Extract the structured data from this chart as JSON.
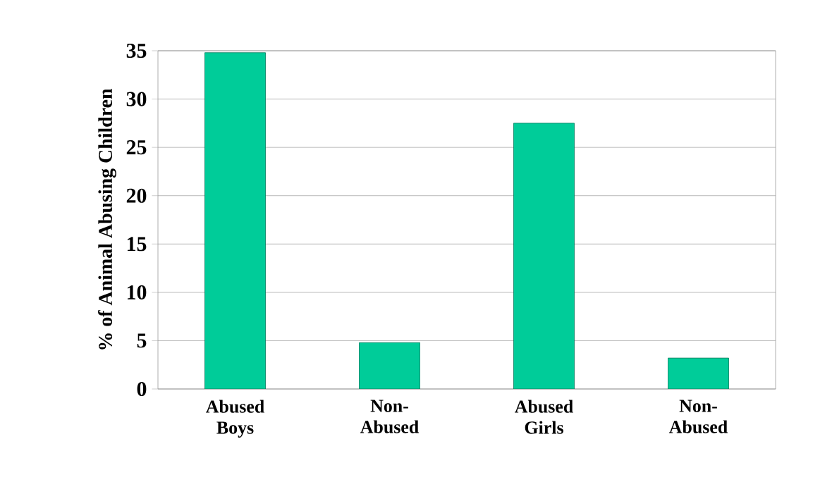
{
  "chart_data": {
    "type": "bar",
    "ylabel": "% of Animal Abusing Children",
    "categories": [
      "Abused Boys",
      "Non-Abused",
      "Abused Girls",
      "Non-Abused"
    ],
    "values": [
      34.8,
      4.8,
      27.5,
      3.2
    ],
    "color": "#00cc99",
    "ylim": [
      0,
      35
    ],
    "yticks": [
      0,
      5,
      10,
      15,
      20,
      25,
      30,
      35
    ],
    "grid": "y"
  }
}
